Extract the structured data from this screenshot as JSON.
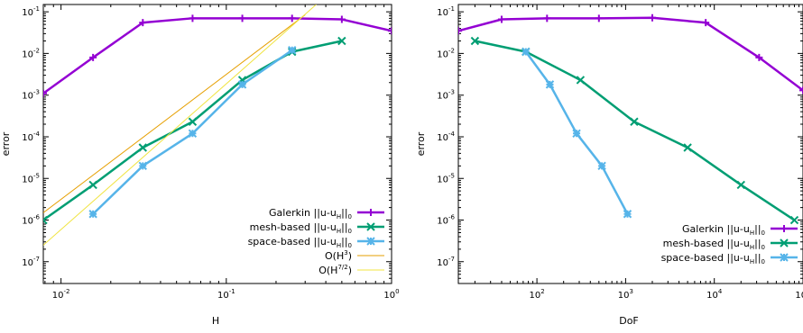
{
  "chart_data": [
    {
      "type": "line",
      "x_scale": "log",
      "y_scale": "log",
      "xlabel": "H",
      "ylabel": "error",
      "xlim": [
        0.0078125,
        1
      ],
      "ylim": [
        3e-08,
        0.15
      ],
      "grid": false,
      "legend_position": "bottom-right",
      "x_ticks": [
        {
          "v": 0.01,
          "base": "10",
          "exp": "-2"
        },
        {
          "v": 0.1,
          "base": "10",
          "exp": "-1"
        },
        {
          "v": 1,
          "base": "10",
          "exp": "0"
        }
      ],
      "y_ticks": [
        {
          "v": 0.1,
          "base": "10",
          "exp": "-1"
        },
        {
          "v": 0.01,
          "base": "10",
          "exp": "-2"
        },
        {
          "v": 0.001,
          "base": "10",
          "exp": "-3"
        },
        {
          "v": 0.0001,
          "base": "10",
          "exp": "-4"
        },
        {
          "v": 1e-05,
          "base": "10",
          "exp": "-5"
        },
        {
          "v": 1e-06,
          "base": "10",
          "exp": "-6"
        },
        {
          "v": 1e-07,
          "base": "10",
          "exp": "-7"
        }
      ],
      "series": [
        {
          "name": "Galerkin ||u-u_H||_0",
          "legend": [
            "Galerkin ||u-u",
            "H",
            "||",
            "0"
          ],
          "color": "#9400d3",
          "marker": "plus",
          "x": [
            0.0078125,
            0.015625,
            0.03125,
            0.0625,
            0.125,
            0.25,
            0.5,
            1
          ],
          "y": [
            0.0011,
            0.008,
            0.055,
            0.07,
            0.07,
            0.07,
            0.066,
            0.035
          ]
        },
        {
          "name": "mesh-based ||u-u_H||_0",
          "legend": [
            "mesh-based ||u-u",
            "H",
            "||",
            "0"
          ],
          "color": "#009e73",
          "marker": "x",
          "x": [
            0.0078125,
            0.015625,
            0.03125,
            0.0625,
            0.125,
            0.25,
            0.5
          ],
          "y": [
            1e-06,
            7e-06,
            5.5e-05,
            0.00023,
            0.0023,
            0.011,
            0.02
          ]
        },
        {
          "name": "space-based ||u-u_H||_0",
          "legend": [
            "space-based ||u-u",
            "H",
            "||",
            "0"
          ],
          "color": "#56b4e9",
          "marker": "star",
          "x": [
            0.015625,
            0.03125,
            0.0625,
            0.125,
            0.25
          ],
          "y": [
            1.4e-06,
            2e-05,
            0.00012,
            0.0018,
            0.012
          ]
        },
        {
          "name": "O(H^3)",
          "legend": [
            "O(H",
            "3",
            ")"
          ],
          "legend_kind": "sup",
          "color": "#e69f00",
          "marker": "none",
          "x": [
            0.0078125,
            0.3
          ],
          "y": [
            1.5e-06,
            0.085
          ]
        },
        {
          "name": "O(H^{7/2})",
          "legend": [
            "O(H",
            "7/2",
            ")"
          ],
          "legend_kind": "sup",
          "color": "#f0e442",
          "marker": "none",
          "x": [
            0.0078125,
            0.35
          ],
          "y": [
            2.5e-07,
            0.15
          ]
        }
      ]
    },
    {
      "type": "line",
      "x_scale": "log",
      "y_scale": "log",
      "xlabel": "DoF",
      "ylabel": "error",
      "xlim": [
        13,
        100000
      ],
      "ylim": [
        3e-08,
        0.15
      ],
      "grid": false,
      "legend_position": "bottom-right",
      "x_ticks": [
        {
          "v": 100,
          "base": "10",
          "exp": "2"
        },
        {
          "v": 1000,
          "base": "10",
          "exp": "3"
        },
        {
          "v": 10000,
          "base": "10",
          "exp": "4"
        },
        {
          "v": 100000,
          "base": "10",
          "exp": "5"
        }
      ],
      "y_ticks": [
        {
          "v": 0.1,
          "base": "10",
          "exp": "-1"
        },
        {
          "v": 0.01,
          "base": "10",
          "exp": "-2"
        },
        {
          "v": 0.001,
          "base": "10",
          "exp": "-3"
        },
        {
          "v": 0.0001,
          "base": "10",
          "exp": "-4"
        },
        {
          "v": 1e-05,
          "base": "10",
          "exp": "-5"
        },
        {
          "v": 1e-06,
          "base": "10",
          "exp": "-6"
        },
        {
          "v": 1e-07,
          "base": "10",
          "exp": "-7"
        }
      ],
      "series": [
        {
          "name": "Galerkin ||u-u_H||_0",
          "legend": [
            "Galerkin ||u-u",
            "H",
            "||",
            "0"
          ],
          "color": "#9400d3",
          "marker": "plus",
          "x": [
            13,
            40,
            130,
            500,
            2000,
            8000,
            32000,
            100000
          ],
          "y": [
            0.035,
            0.066,
            0.07,
            0.07,
            0.072,
            0.055,
            0.008,
            0.0013
          ]
        },
        {
          "name": "mesh-based ||u-u_H||_0",
          "legend": [
            "mesh-based ||u-u",
            "H",
            "||",
            "0"
          ],
          "color": "#009e73",
          "marker": "x",
          "x": [
            20,
            75,
            310,
            1250,
            5000,
            20000,
            80000
          ],
          "y": [
            0.02,
            0.011,
            0.0023,
            0.00023,
            5.5e-05,
            7e-06,
            1e-06
          ]
        },
        {
          "name": "space-based ||u-u_H||_0",
          "legend": [
            "space-based ||u-u",
            "H",
            "||",
            "0"
          ],
          "color": "#56b4e9",
          "marker": "star",
          "x": [
            75,
            140,
            280,
            540,
            1050
          ],
          "y": [
            0.011,
            0.0018,
            0.00012,
            2e-05,
            1.4e-06
          ]
        }
      ]
    }
  ]
}
